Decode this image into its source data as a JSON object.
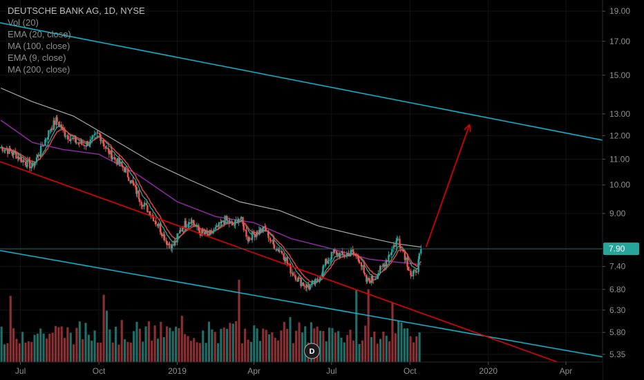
{
  "legend": {
    "title": "DEUTSCHE BANK AG, 1D, NYSE",
    "lines": [
      "Vol (20)",
      "EMA (20, close)",
      "MA (100, close)",
      "EMA (9, close)",
      "MA (200, close)"
    ]
  },
  "colors": {
    "background": "#000000",
    "up_candle": "#26a69a",
    "down_candle": "#ef5350",
    "volume_up": "#1f6e68",
    "volume_down": "#8c2f33",
    "channel": "#00bcd4",
    "trendline": "#e60000",
    "arrow": "#d40000",
    "ema20": "#e04040",
    "ma100": "#a9a9a9",
    "ema9": "#26b5a6",
    "ma200": "#9c27b0",
    "price_tag": "#26a69a"
  },
  "marker": {
    "label": "D"
  },
  "chart_data": {
    "type": "line",
    "title": "DEUTSCHE BANK AG, 1D, NYSE",
    "y_scale": "log",
    "ylim": [
      5.2,
      19.8
    ],
    "y_ticks": [
      19.0,
      17.0,
      15.0,
      13.0,
      12.0,
      11.0,
      10.0,
      9.0,
      7.4,
      6.8,
      6.3,
      5.8,
      5.35
    ],
    "y_tick_labels": [
      "19.00",
      "17.00",
      "15.00",
      "13.00",
      "12.00",
      "11.00",
      "10.00",
      "9.00",
      "7.40",
      "6.80",
      "6.30",
      "5.80",
      "5.35"
    ],
    "x_ticks": [
      "2018-07-01",
      "2018-10-01",
      "2019-01-01",
      "2019-04-01",
      "2019-07-01",
      "2019-10-01",
      "2020-01-01",
      "2020-04-01"
    ],
    "x_tick_labels": [
      "Jul",
      "Oct",
      "2019",
      "Apr",
      "Jul",
      "Oct",
      "2020",
      "Apr"
    ],
    "xlim": [
      "2018-06-07",
      "2020-05-14"
    ],
    "last_price": 7.9,
    "last_price_label": "7.90",
    "price_series": {
      "name": "",
      "points": [
        [
          "2018-06-08",
          11.5
        ],
        [
          "2018-06-25",
          11.2
        ],
        [
          "2018-07-05",
          10.9
        ],
        [
          "2018-07-15",
          10.7
        ],
        [
          "2018-07-25",
          11.4
        ],
        [
          "2018-08-05",
          12.3
        ],
        [
          "2018-08-12",
          12.7
        ],
        [
          "2018-08-22",
          12.1
        ],
        [
          "2018-09-01",
          11.8
        ],
        [
          "2018-09-12",
          11.6
        ],
        [
          "2018-09-20",
          11.7
        ],
        [
          "2018-10-01",
          12.1
        ],
        [
          "2018-10-10",
          11.4
        ],
        [
          "2018-10-20",
          11.0
        ],
        [
          "2018-10-31",
          10.6
        ],
        [
          "2018-11-10",
          10.0
        ],
        [
          "2018-11-20",
          9.4
        ],
        [
          "2018-12-01",
          9.0
        ],
        [
          "2018-12-10",
          8.6
        ],
        [
          "2018-12-20",
          8.1
        ],
        [
          "2018-12-27",
          7.95
        ],
        [
          "2019-01-07",
          8.6
        ],
        [
          "2019-01-17",
          8.8
        ],
        [
          "2019-01-27",
          8.4
        ],
        [
          "2019-02-06",
          8.3
        ],
        [
          "2019-02-16",
          8.5
        ],
        [
          "2019-02-26",
          8.8
        ],
        [
          "2019-03-08",
          8.6
        ],
        [
          "2019-03-15",
          8.9
        ],
        [
          "2019-03-25",
          8.2
        ],
        [
          "2019-04-04",
          8.4
        ],
        [
          "2019-04-14",
          8.5
        ],
        [
          "2019-04-24",
          8.0
        ],
        [
          "2019-05-04",
          7.8
        ],
        [
          "2019-05-14",
          7.3
        ],
        [
          "2019-05-25",
          7.0
        ],
        [
          "2019-06-04",
          6.85
        ],
        [
          "2019-06-14",
          7.0
        ],
        [
          "2019-06-24",
          7.5
        ],
        [
          "2019-07-04",
          7.8
        ],
        [
          "2019-07-14",
          7.7
        ],
        [
          "2019-07-24",
          7.8
        ],
        [
          "2019-08-03",
          7.6
        ],
        [
          "2019-08-10",
          7.0
        ],
        [
          "2019-08-20",
          7.1
        ],
        [
          "2019-08-30",
          7.4
        ],
        [
          "2019-09-10",
          7.9
        ],
        [
          "2019-09-17",
          8.2
        ],
        [
          "2019-09-25",
          7.7
        ],
        [
          "2019-10-03",
          7.1
        ],
        [
          "2019-10-10",
          7.4
        ],
        [
          "2019-10-14",
          7.9
        ]
      ]
    },
    "ma100_series": {
      "points": [
        [
          "2018-06-08",
          14.3
        ],
        [
          "2018-07-15",
          13.6
        ],
        [
          "2018-09-01",
          12.9
        ],
        [
          "2018-10-15",
          11.9
        ],
        [
          "2018-12-01",
          10.9
        ],
        [
          "2019-01-15",
          10.2
        ],
        [
          "2019-03-15",
          9.4
        ],
        [
          "2019-05-01",
          9.1
        ],
        [
          "2019-06-15",
          8.6
        ],
        [
          "2019-08-01",
          8.3
        ],
        [
          "2019-09-15",
          8.05
        ],
        [
          "2019-10-14",
          7.95
        ]
      ]
    },
    "ma200_series": {
      "points": [
        [
          "2018-06-08",
          12.7
        ],
        [
          "2018-07-15",
          11.7
        ],
        [
          "2018-08-20",
          11.4
        ],
        [
          "2018-10-01",
          11.2
        ],
        [
          "2018-11-15",
          10.4
        ],
        [
          "2019-01-01",
          9.4
        ],
        [
          "2019-02-15",
          8.9
        ],
        [
          "2019-04-01",
          8.7
        ],
        [
          "2019-05-15",
          8.2
        ],
        [
          "2019-07-01",
          7.9
        ],
        [
          "2019-08-15",
          7.6
        ],
        [
          "2019-10-14",
          7.45
        ]
      ]
    },
    "upper_channel": [
      [
        "2018-06-07",
        18.2
      ],
      [
        "2020-05-14",
        11.8
      ]
    ],
    "lower_channel": [
      [
        "2018-06-07",
        7.85
      ],
      [
        "2020-05-14",
        5.3
      ]
    ],
    "trendline": [
      [
        "2018-06-07",
        10.9
      ],
      [
        "2020-03-22",
        5.2
      ]
    ],
    "projection_arrow": [
      [
        "2019-10-20",
        7.95
      ],
      [
        "2019-12-10",
        12.5
      ]
    ],
    "volume_bars": 140
  }
}
